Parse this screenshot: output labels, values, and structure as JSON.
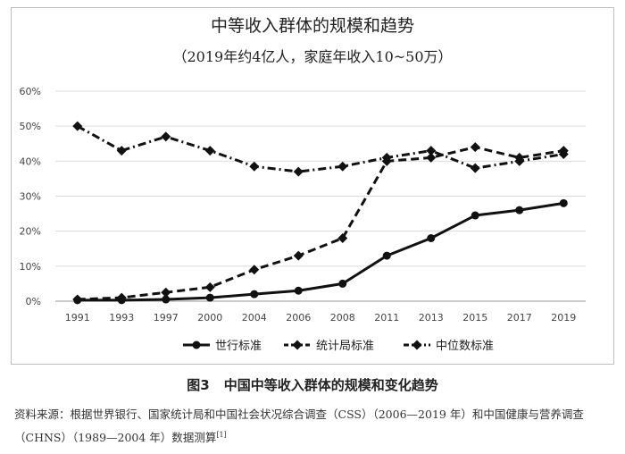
{
  "chart_data": {
    "type": "line",
    "title": "中等收入群体的规模和趋势",
    "subtitle": "（2019年约4亿人，家庭年收入10~50万）",
    "categories": [
      "1991",
      "1993",
      "1997",
      "2000",
      "2004",
      "2006",
      "2008",
      "2011",
      "2013",
      "2015",
      "2017",
      "2019"
    ],
    "ylim": [
      0,
      60
    ],
    "yticks": [
      "0%",
      "10%",
      "20%",
      "30%",
      "40%",
      "50%",
      "60%"
    ],
    "series": [
      {
        "name": "世行标准",
        "style": "solid",
        "values": [
          0.3,
          0.3,
          0.5,
          1,
          2,
          3,
          5,
          13,
          18,
          24.5,
          26,
          28
        ]
      },
      {
        "name": "统计局标准",
        "style": "dashed",
        "values": [
          0.5,
          1,
          2.5,
          4,
          9,
          13,
          18,
          40,
          41,
          44,
          41,
          43
        ]
      },
      {
        "name": "中位数标准",
        "style": "dashdot",
        "values": [
          50,
          43,
          47,
          43,
          38.5,
          37,
          38.5,
          41,
          43,
          38,
          40,
          42
        ]
      }
    ],
    "legend_position": "bottom"
  },
  "caption": {
    "number": "图3",
    "text": "中国中等收入群体的规模和变化趋势"
  },
  "source": {
    "text": "资料来源：根据世界银行、国家统计局和中国社会状况综合调查（CSS）（2006—2019 年）和中国健康与营养调查（CHNS）（1989—2004 年）数据测算",
    "ref": "[1]"
  }
}
